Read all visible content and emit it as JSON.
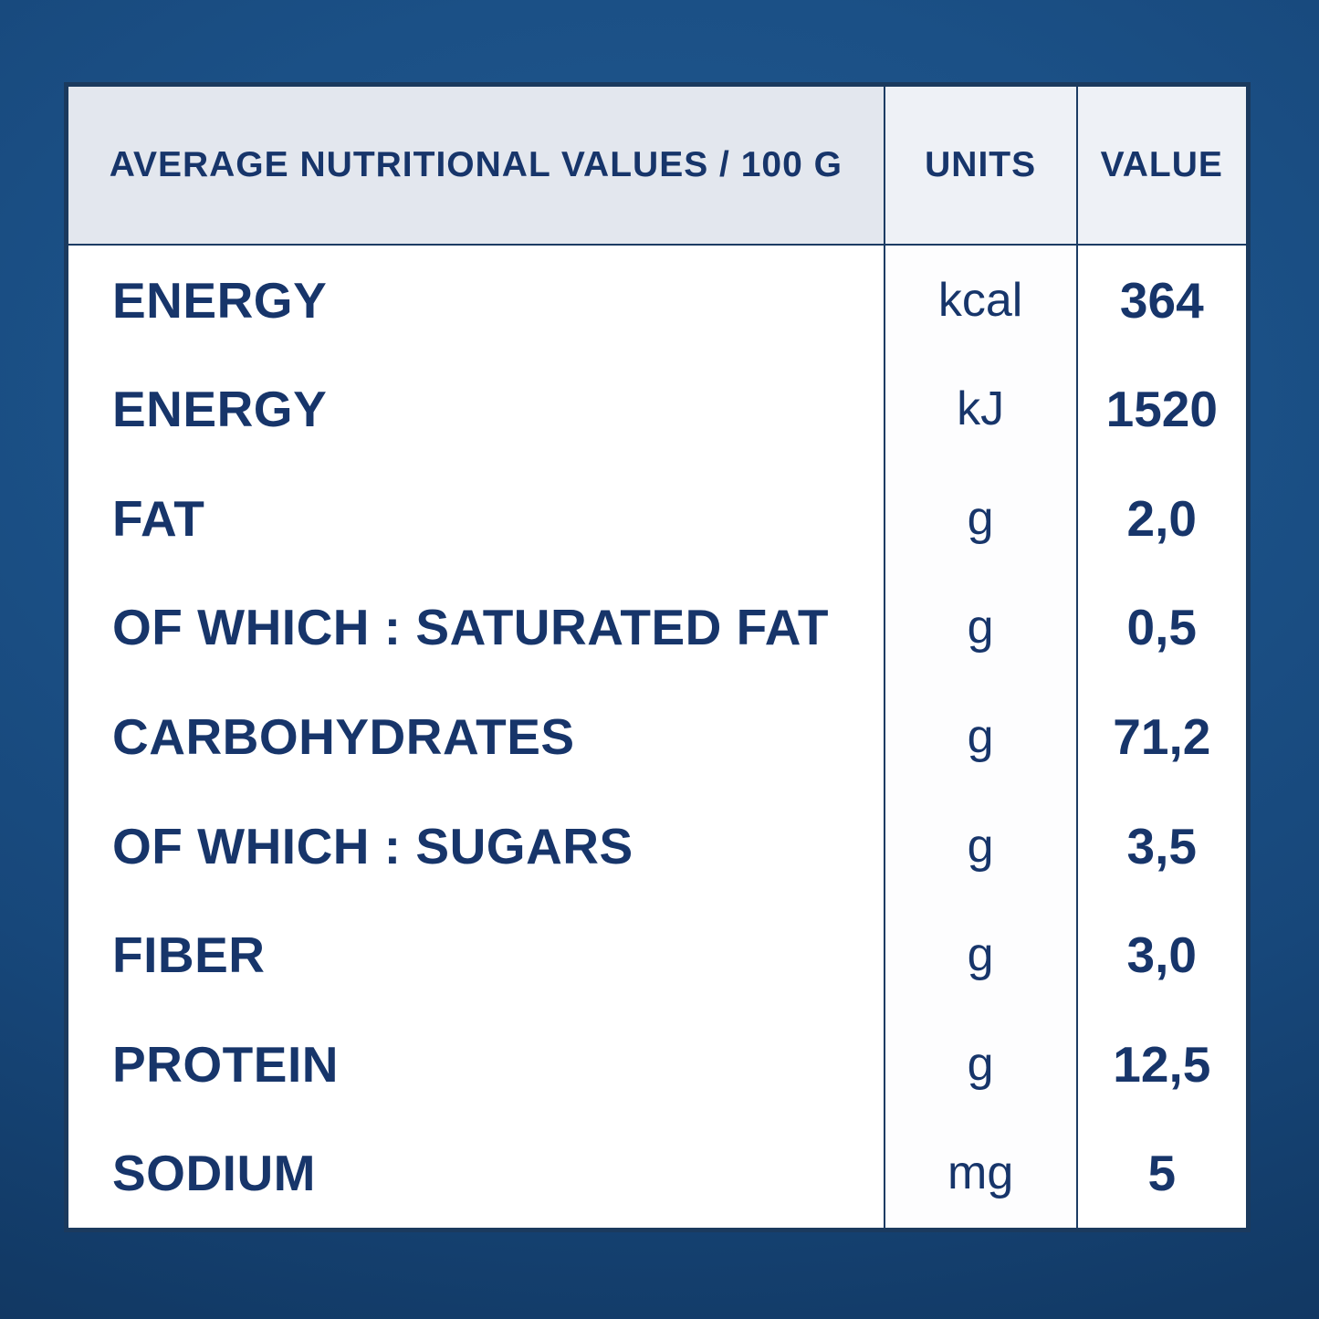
{
  "colors": {
    "background_top": "#20598f",
    "background_corner": "#0f3055",
    "text_navy": "#17356a",
    "border_navy": "#1b3a5e",
    "divider_navy": "#1c3c64",
    "header_label_bg": "#e3e7ee",
    "header_units_value_bg": "#eef1f6",
    "body_bg": "#ffffff"
  },
  "chart_data": {
    "type": "table",
    "title": "AVERAGE NUTRITIONAL VALUES / 100 G",
    "header": {
      "label_col": "AVERAGE NUTRITIONAL VALUES / 100 G",
      "units_col": "UNITS",
      "value_col": "VALUE"
    },
    "rows": [
      {
        "nutrient": "ENERGY",
        "unit": "kcal",
        "value": "364"
      },
      {
        "nutrient": "ENERGY",
        "unit": "kJ",
        "value": "1520"
      },
      {
        "nutrient": "FAT",
        "unit": "g",
        "value": "2,0"
      },
      {
        "nutrient": "OF WHICH : SATURATED FAT",
        "unit": "g",
        "value": "0,5"
      },
      {
        "nutrient": "CARBOHYDRATES",
        "unit": "g",
        "value": "71,2"
      },
      {
        "nutrient": "OF WHICH : SUGARS",
        "unit": "g",
        "value": "3,5"
      },
      {
        "nutrient": "FIBER",
        "unit": "g",
        "value": "3,0"
      },
      {
        "nutrient": "PROTEIN",
        "unit": "g",
        "value": "12,5"
      },
      {
        "nutrient": "SODIUM",
        "unit": "mg",
        "value": "5"
      }
    ]
  }
}
